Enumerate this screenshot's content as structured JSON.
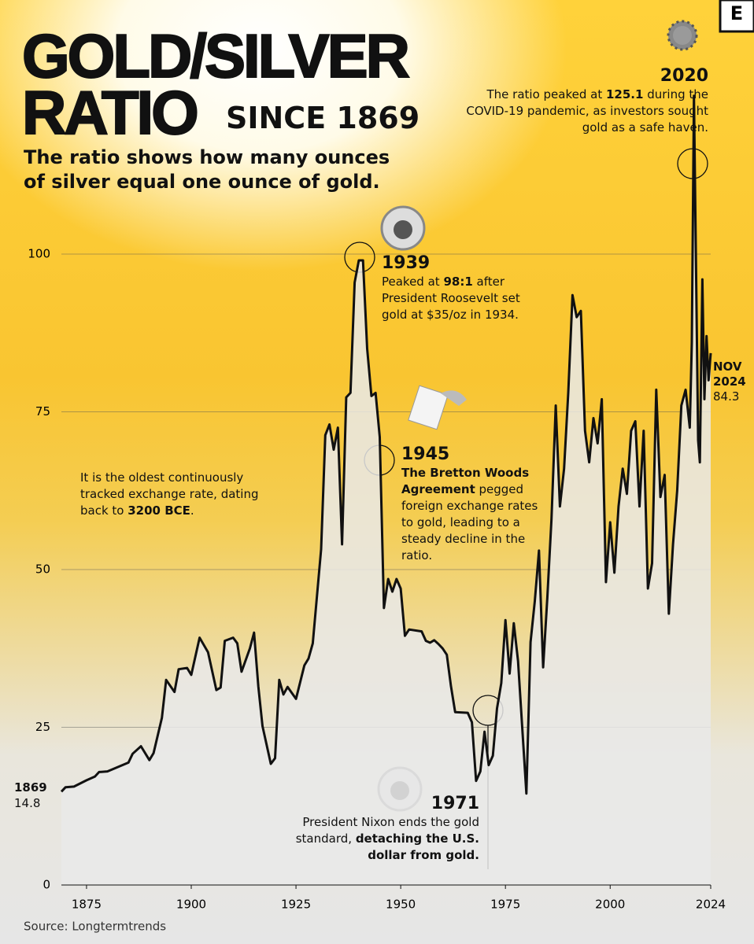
{
  "chart_data": {
    "type": "line",
    "title": "GOLD/SILVER",
    "title_line2": "RATIO",
    "title_suffix": "SINCE 1869",
    "subtitle": "The ratio shows how many ounces of silver equal one ounce of gold.",
    "brand": "E",
    "source": "Source: Longtermtrends",
    "color": "#111111",
    "grid": true,
    "xlim": [
      1869,
      2024
    ],
    "ylim": [
      0,
      100
    ],
    "xticks": [
      1875,
      1900,
      1925,
      1950,
      1975,
      2000,
      2024
    ],
    "yticks": [
      0,
      25,
      50,
      75,
      100
    ],
    "x": [
      1869,
      1870,
      1872,
      1875,
      1877,
      1878,
      1880,
      1885,
      1886,
      1888,
      1890,
      1891,
      1893,
      1894,
      1896,
      1897,
      1899,
      1900,
      1902,
      1904,
      1906,
      1907,
      1908,
      1910,
      1911,
      1912,
      1914,
      1915,
      1916,
      1917,
      1919,
      1920,
      1921,
      1922,
      1923,
      1925,
      1927,
      1928,
      1929,
      1931,
      1932,
      1933,
      1934,
      1935,
      1936,
      1937,
      1938,
      1939,
      1940,
      1941,
      1942,
      1943,
      1944,
      1945,
      1946,
      1947,
      1948,
      1949,
      1950,
      1951,
      1952,
      1955,
      1956,
      1957,
      1958,
      1959,
      1960,
      1961,
      1962,
      1963,
      1966,
      1967,
      1968,
      1969,
      1970,
      1971,
      1972,
      1973,
      1974,
      1975,
      1976,
      1977,
      1978,
      1979,
      1980,
      1981,
      1982,
      1983,
      1984,
      1985,
      1986,
      1987,
      1988,
      1989,
      1990,
      1991,
      1992,
      1993,
      1994,
      1995,
      1996,
      1997,
      1998,
      1999,
      2000,
      2001,
      2002,
      2003,
      2004,
      2005,
      2006,
      2007,
      2008,
      2009,
      2010,
      2011,
      2012,
      2013,
      2014,
      2015,
      2016,
      2017,
      2018,
      2019,
      2019.5,
      2020,
      2021,
      2021.4,
      2022,
      2022.5,
      2023,
      2023.5,
      2024
    ],
    "values": [
      14.8,
      15.5,
      15.6,
      16.6,
      17.2,
      17.9,
      18.0,
      19.4,
      20.8,
      22.0,
      19.8,
      20.9,
      26.5,
      32.5,
      30.6,
      34.2,
      34.4,
      33.3,
      39.2,
      36.9,
      30.9,
      31.3,
      38.7,
      39.2,
      38.3,
      33.8,
      37.5,
      40.0,
      31.5,
      25.2,
      19.2,
      20.1,
      32.5,
      30.2,
      31.4,
      29.5,
      34.8,
      35.9,
      38.3,
      53.2,
      71.3,
      73.0,
      69.0,
      72.5,
      54.0,
      77.3,
      78.0,
      95.5,
      99.0,
      99.0,
      85.0,
      77.5,
      78.0,
      71.0,
      43.9,
      48.5,
      46.5,
      48.5,
      47.0,
      39.5,
      40.5,
      40.2,
      38.7,
      38.4,
      38.8,
      38.2,
      37.5,
      36.5,
      31.5,
      27.4,
      27.3,
      25.8,
      16.5,
      18.0,
      24.3,
      19.0,
      20.5,
      28.0,
      32.0,
      42.0,
      33.5,
      41.5,
      35.5,
      25.0,
      14.5,
      38.5,
      45.0,
      53.0,
      34.5,
      45.5,
      58.0,
      76.0,
      60.0,
      66.0,
      78.0,
      93.5,
      90.0,
      91.0,
      72.0,
      67.0,
      74.0,
      70.0,
      77.0,
      48.0,
      57.5,
      49.5,
      60.0,
      66.0,
      62.0,
      72.0,
      73.5,
      60.0,
      72.0,
      47.0,
      51.0,
      78.5,
      61.5,
      65.0,
      43.0,
      54.0,
      62.5,
      76.0,
      78.5,
      72.5,
      86.0,
      125.1,
      70.5,
      67.0,
      96.0,
      77.0,
      87.0,
      80.0,
      84.3
    ],
    "start_label": "1869",
    "end_label": "NOV 2024",
    "annotations": [
      {
        "year": "1939",
        "parts": [
          {
            "text": "Peaked at "
          },
          {
            "text": "98:1",
            "bold": true
          },
          {
            "text": " after President Roosevelt set gold at $35/oz in 1934."
          }
        ]
      },
      {
        "year": "1945",
        "parts": [
          {
            "text": "The Bretton Woods Agreement",
            "bold": true
          },
          {
            "text": " pegged foreign exchange rates to gold, leading to a steady decline in the ratio."
          }
        ]
      },
      {
        "year": "1971",
        "parts": [
          {
            "text": "President Nixon ends the gold standard, "
          },
          {
            "text": "detaching the U.S. dollar from gold.",
            "bold": true
          }
        ]
      },
      {
        "year": "2020",
        "parts": [
          {
            "text": "The ratio peaked at "
          },
          {
            "text": "125.1",
            "bold": true
          },
          {
            "text": " during the COVID-19 pandemic, as investors sought gold as a safe haven."
          }
        ]
      },
      {
        "parts": [
          {
            "text": "It is the oldest continuously tracked exchange rate, dating back to "
          },
          {
            "text": "3200 BCE",
            "bold": true
          },
          {
            "text": "."
          }
        ]
      }
    ]
  }
}
